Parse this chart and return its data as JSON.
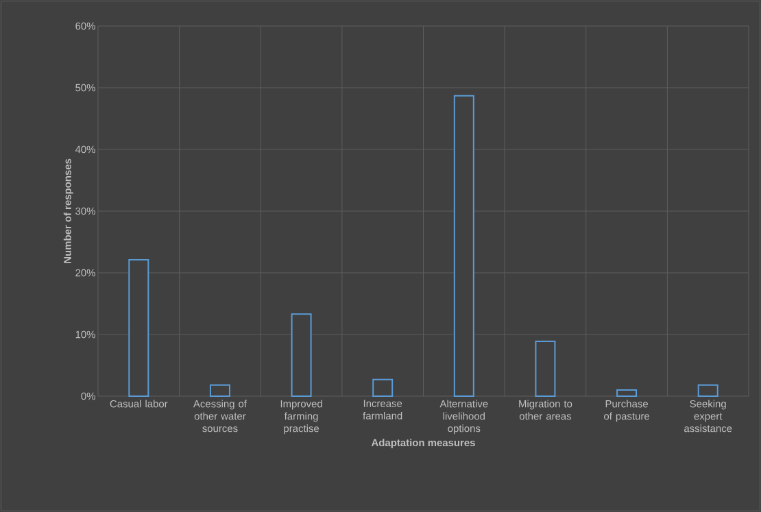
{
  "chart_data": {
    "type": "bar",
    "xlabel": "Adaptation measures",
    "ylabel": "Number of responses",
    "categories": [
      "Casual labor",
      "Acessing of other water sources",
      "Improved farming practise",
      "Increase farmland",
      "Alternative livelihood options",
      "Migration to other areas",
      "Purchase of pasture",
      "Seeking expert assistance"
    ],
    "values": [
      22.1,
      1.8,
      13.3,
      2.7,
      48.7,
      8.9,
      1.0,
      1.8
    ],
    "color": "#5b9bd5",
    "ylim": [
      0,
      60
    ],
    "yticks": [
      {
        "value": 0,
        "label": "0%"
      },
      {
        "value": 10,
        "label": "10%"
      },
      {
        "value": 20,
        "label": "20%"
      },
      {
        "value": 30,
        "label": "30%"
      },
      {
        "value": 40,
        "label": "40%"
      },
      {
        "value": 50,
        "label": "50%"
      },
      {
        "value": 60,
        "label": "60%"
      }
    ],
    "grid": true
  }
}
